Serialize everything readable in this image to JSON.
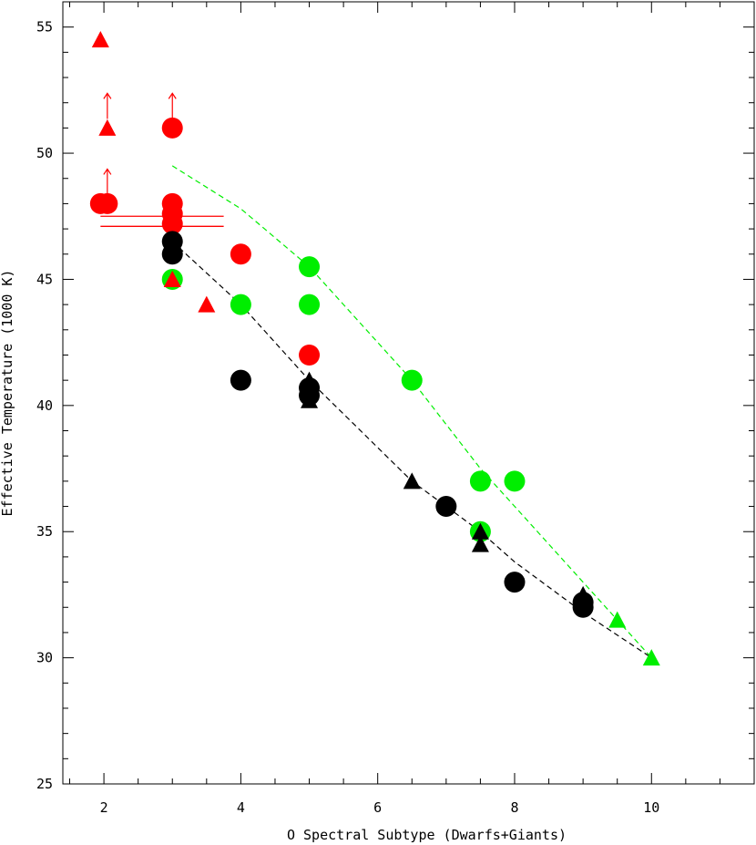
{
  "chart_data": {
    "type": "scatter",
    "title": "",
    "xlabel": "O Spectral Subtype (Dwarfs+Giants)",
    "ylabel": "Effective Temperature (1000 K)",
    "xlim": [
      1.4,
      11.5
    ],
    "ylim": [
      25,
      56
    ],
    "xticks": [
      2,
      4,
      6,
      8,
      10
    ],
    "yticks": [
      25,
      30,
      35,
      40,
      45,
      50,
      55
    ],
    "grid": false,
    "legend": "none",
    "colors": {
      "red": "#ff0000",
      "green": "#00ee00",
      "black": "#000000"
    },
    "series": [
      {
        "color": "red",
        "marker": "circle",
        "points": [
          [
            1.95,
            48
          ],
          [
            2.05,
            48
          ],
          [
            3,
            51
          ],
          [
            3,
            48
          ],
          [
            3,
            47.6
          ],
          [
            3,
            47.2
          ],
          [
            4,
            46
          ],
          [
            5,
            42
          ]
        ]
      },
      {
        "color": "red",
        "marker": "triangle",
        "points": [
          [
            1.95,
            54.5
          ],
          [
            2.05,
            51
          ],
          [
            3,
            45
          ],
          [
            3.5,
            44
          ]
        ]
      },
      {
        "color": "green",
        "marker": "circle",
        "points": [
          [
            3,
            45
          ],
          [
            4,
            44
          ],
          [
            5,
            45.5
          ],
          [
            5,
            44
          ],
          [
            6.5,
            41
          ],
          [
            7.5,
            37
          ],
          [
            7.5,
            35
          ],
          [
            8,
            37
          ]
        ]
      },
      {
        "color": "green",
        "marker": "triangle",
        "points": [
          [
            9.5,
            31.5
          ],
          [
            10,
            30
          ]
        ]
      },
      {
        "color": "black",
        "marker": "circle",
        "points": [
          [
            3,
            46.5
          ],
          [
            3,
            46
          ],
          [
            4,
            41
          ],
          [
            5,
            40.7
          ],
          [
            5,
            40.4
          ],
          [
            7,
            36
          ],
          [
            8,
            33
          ],
          [
            9,
            32.2
          ],
          [
            9,
            32
          ]
        ]
      },
      {
        "color": "black",
        "marker": "triangle",
        "points": [
          [
            5,
            41
          ],
          [
            5,
            40.2
          ],
          [
            6.5,
            37
          ],
          [
            7.5,
            35
          ],
          [
            7.5,
            34.5
          ],
          [
            9,
            32.5
          ]
        ]
      },
      {
        "color": "green",
        "marker": "dashed-line",
        "points": [
          [
            3,
            49.5
          ],
          [
            4,
            47.8
          ],
          [
            5,
            45.5
          ],
          [
            6.5,
            41
          ],
          [
            7.5,
            37.5
          ],
          [
            8,
            36
          ],
          [
            9,
            33
          ],
          [
            10,
            30
          ]
        ]
      },
      {
        "color": "black",
        "marker": "dashed-line",
        "points": [
          [
            3,
            46.5
          ],
          [
            4,
            44
          ],
          [
            5,
            41
          ],
          [
            6.5,
            37
          ],
          [
            7.5,
            35
          ],
          [
            8,
            33.8
          ],
          [
            9,
            31.8
          ],
          [
            10,
            30
          ]
        ]
      }
    ],
    "lower_limit_arrows": [
      [
        2.05,
        48
      ],
      [
        2.05,
        51
      ],
      [
        3,
        51
      ]
    ],
    "horizontal_bars": [
      [
        1.95,
        3.75,
        47.5
      ],
      [
        1.95,
        3.75,
        47.1
      ]
    ]
  }
}
